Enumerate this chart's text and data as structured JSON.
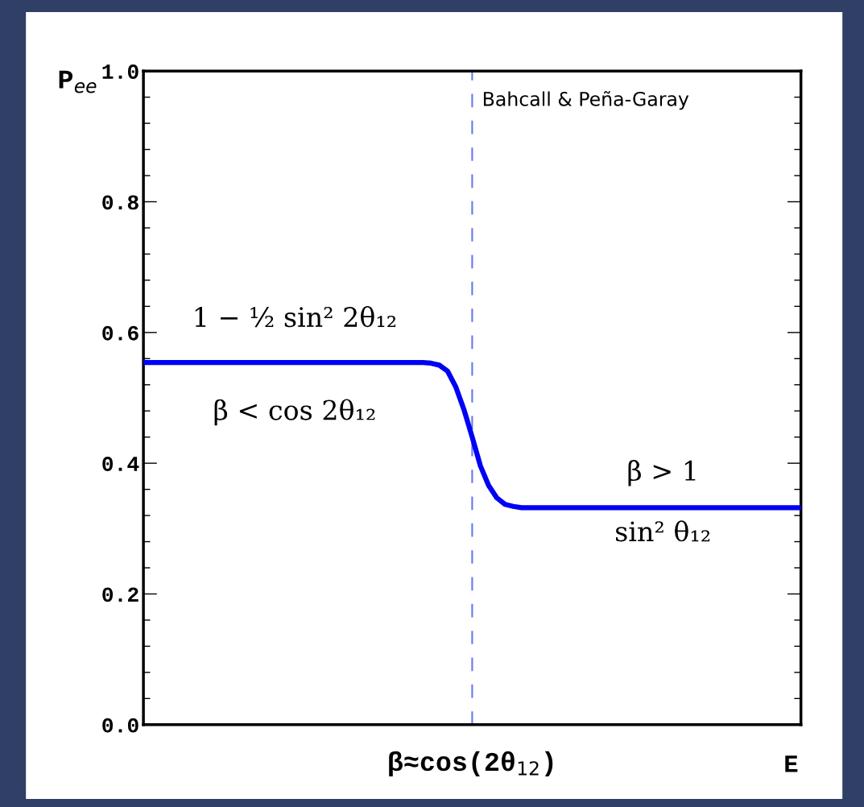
{
  "chart_data": {
    "type": "line",
    "ylabel": "P$_{ee}$",
    "xlabel": "E",
    "categories": [
      null,
      null,
      null,
      null,
      null,
      null,
      null,
      null,
      null,
      null,
      null,
      null,
      null,
      null,
      null,
      null,
      null,
      null,
      null,
      null,
      null,
      null,
      null,
      null,
      null,
      null,
      null,
      null,
      null,
      null,
      null,
      null,
      null,
      null,
      null,
      null,
      null,
      null,
      null,
      null,
      null,
      null,
      null,
      null,
      null,
      null,
      null,
      null,
      null,
      null,
      null,
      null,
      null,
      null,
      null,
      null,
      null,
      null,
      null,
      null,
      null,
      null,
      null,
      null,
      null,
      null,
      null,
      null,
      null,
      null,
      null,
      null,
      null,
      null,
      null,
      null,
      null,
      null,
      null,
      null,
      null
    ],
    "series": [
      {
        "color": "#0000f5",
        "values": [
          0.554,
          0.554,
          0.554,
          0.554,
          0.554,
          0.554,
          0.554,
          0.554,
          0.554,
          0.554,
          0.554,
          0.554,
          0.554,
          0.554,
          0.554,
          0.554,
          0.554,
          0.554,
          0.554,
          0.554,
          0.554,
          0.554,
          0.554,
          0.554,
          0.554,
          0.554,
          0.554,
          0.554,
          0.554,
          0.554,
          0.554,
          0.554,
          0.554,
          0.554,
          0.554,
          0.553,
          0.55,
          0.541,
          0.517,
          0.482,
          0.44,
          0.396,
          0.366,
          0.347,
          0.337,
          0.334,
          0.332,
          0.332,
          0.332,
          0.332,
          0.332,
          0.332,
          0.332,
          0.332,
          0.332,
          0.332,
          0.332,
          0.332,
          0.332,
          0.332,
          0.332,
          0.332,
          0.332,
          0.332,
          0.332,
          0.332,
          0.332,
          0.332,
          0.332,
          0.332,
          0.332,
          0.332,
          0.332,
          0.332,
          0.332,
          0.332,
          0.332,
          0.332,
          0.332,
          0.332,
          0.332
        ]
      }
    ],
    "ylim": [
      0,
      1
    ],
    "yticks": [
      {
        "value": 0,
        "label": "0.0"
      },
      {
        "value": 0.2,
        "label": "0.2"
      },
      {
        "value": 0.4,
        "label": "0.4"
      },
      {
        "value": 0.6,
        "label": "0.6"
      },
      {
        "value": 0.8,
        "label": "0.8"
      },
      {
        "value": 1,
        "label": "1.0"
      }
    ],
    "annotations": [
      "Bahcall & Peña-Garay",
      "1 − ½ sin² 2θ₁₂",
      "β < cos 2θ₁₂",
      "β > 1",
      "sin² θ₁₂",
      "β≈cos(2θ$_{12}$)"
    ],
    "grid": false,
    "legend": false,
    "marker": "none",
    "line_style": "solid"
  }
}
